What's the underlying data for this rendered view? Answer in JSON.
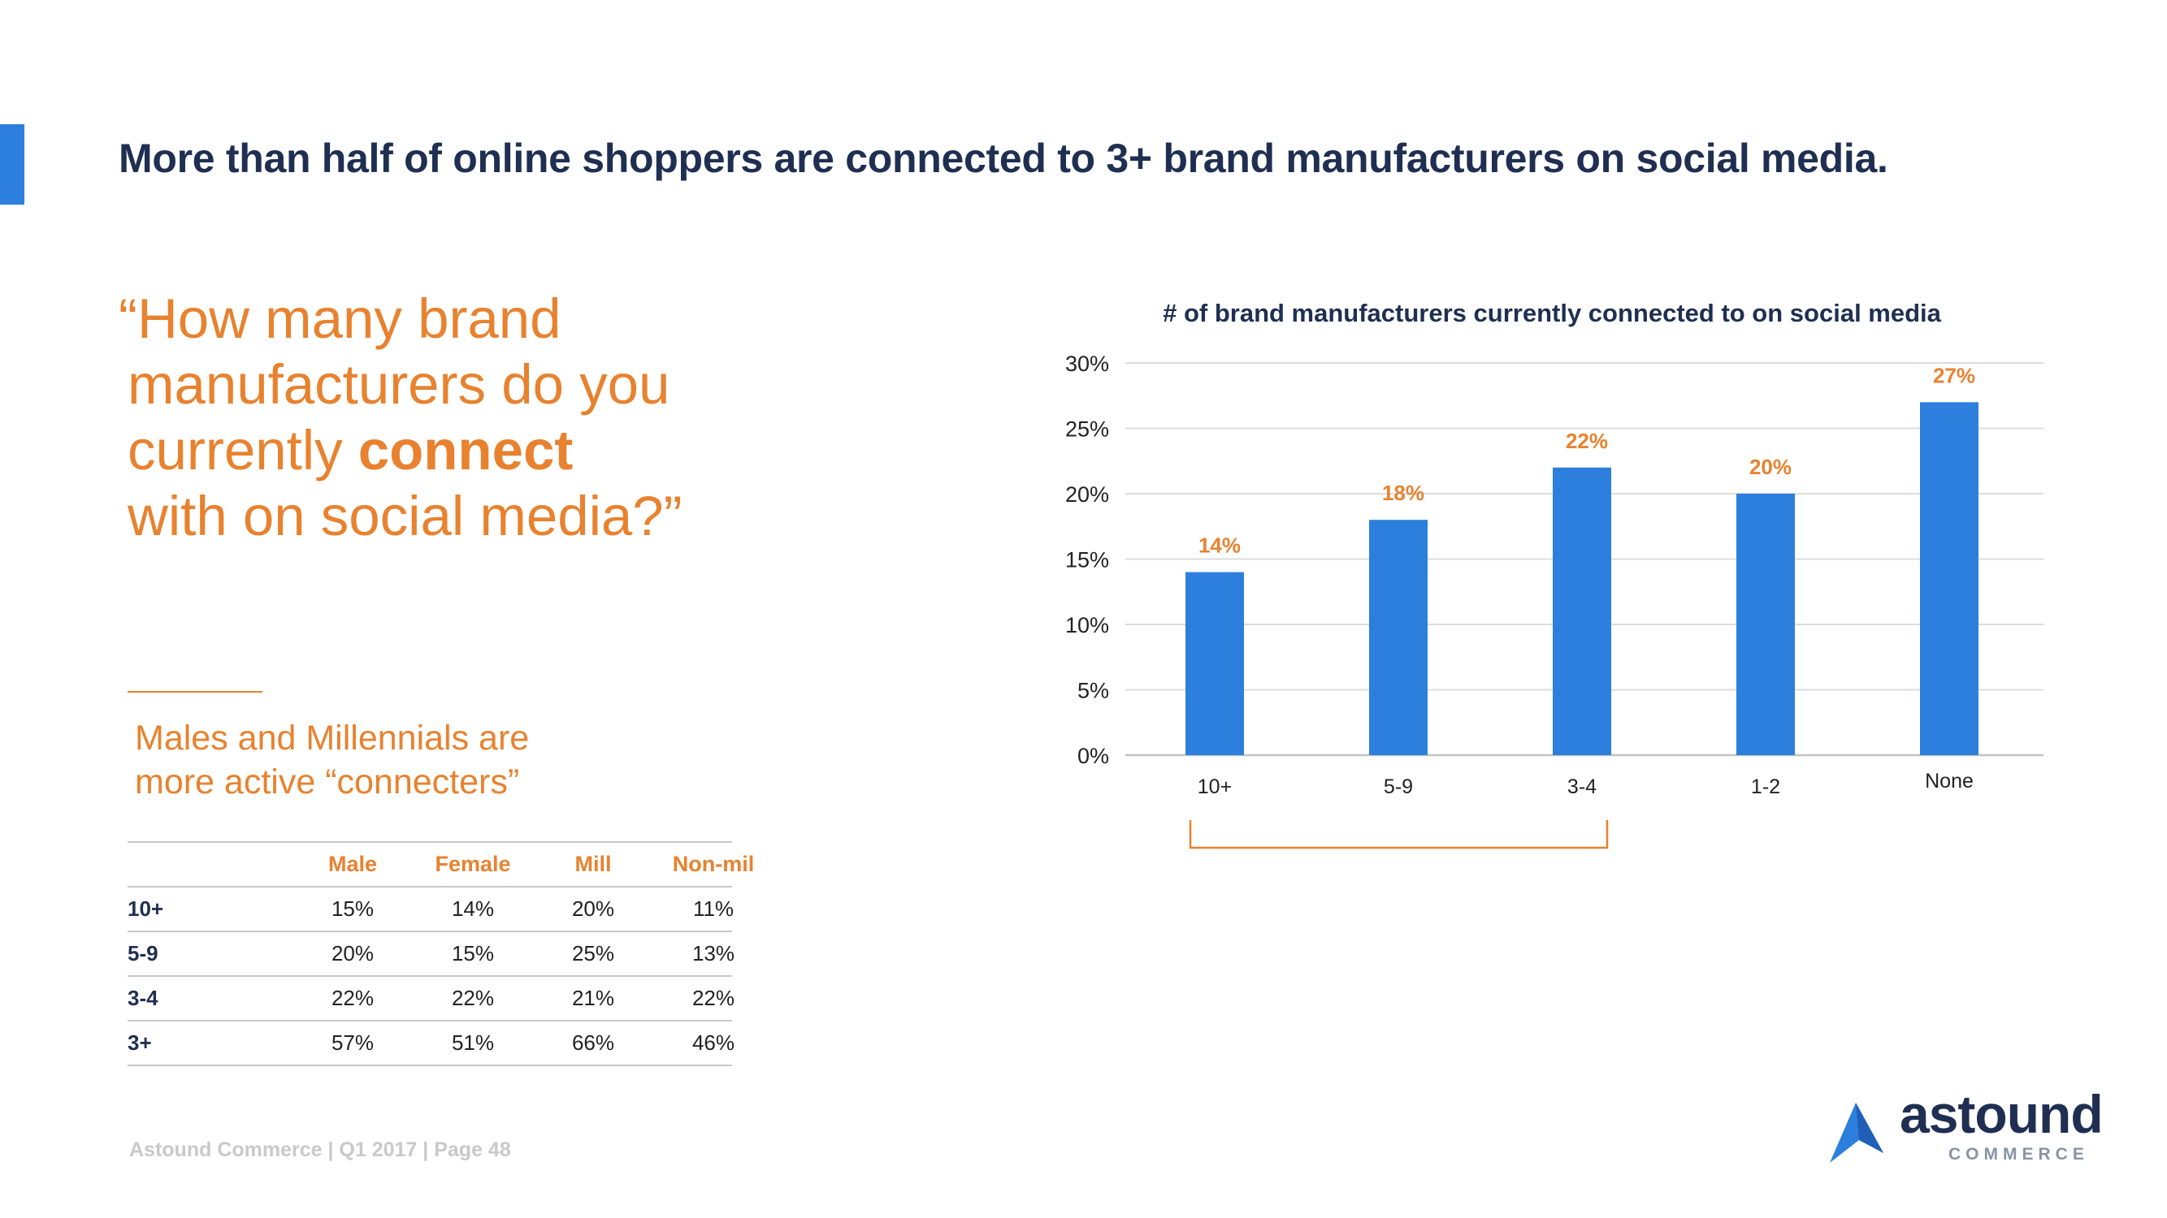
{
  "page": {
    "title": "More than half of online shoppers are connected to 3+ brand manufacturers on social media.",
    "question": {
      "line1": "“How many brand",
      "line2": "manufacturers do you",
      "line3_pre": "currently ",
      "line3_bold": "connect",
      "line4": "with on social media?”"
    },
    "subhead": {
      "line1": "Males and Millennials are",
      "line2": "more active “connecters”"
    },
    "footer": "Astound Commerce | Q1 2017 | Page 48",
    "logo": {
      "word": "astound",
      "sub": "COMMERCE"
    }
  },
  "segment_table": {
    "headers": [
      "",
      "Male",
      "Female",
      "Mill",
      "Non-mil"
    ],
    "rows": [
      [
        "10+",
        "15%",
        "14%",
        "20%",
        "11%"
      ],
      [
        "5-9",
        "20%",
        "15%",
        "25%",
        "13%"
      ],
      [
        "3-4",
        "22%",
        "22%",
        "21%",
        "22%"
      ],
      [
        "3+",
        "57%",
        "51%",
        "66%",
        "46%"
      ]
    ]
  },
  "colors": {
    "bar": "#2d7fde",
    "accent_orange": "#e8822f",
    "navy": "#1f2f52",
    "grid": "#dcdcdc"
  },
  "chart_data": {
    "type": "bar",
    "title": "# of brand manufacturers currently connected to on social media",
    "categories": [
      "10+",
      "5-9",
      "3-4",
      "1-2",
      "None"
    ],
    "values": [
      14,
      18,
      22,
      20,
      27
    ],
    "data_labels": [
      "14%",
      "18%",
      "22%",
      "20%",
      "27%"
    ],
    "ylim": [
      0,
      30
    ],
    "yticks": [
      0,
      5,
      10,
      15,
      20,
      25,
      30
    ],
    "ytick_labels": [
      "0%",
      "5%",
      "10%",
      "15%",
      "20%",
      "25%",
      "30%"
    ],
    "xlabel": "",
    "ylabel": "",
    "grid": true,
    "legend": "none",
    "annotation": "bracket spanning categories 10+ through 3-4"
  }
}
